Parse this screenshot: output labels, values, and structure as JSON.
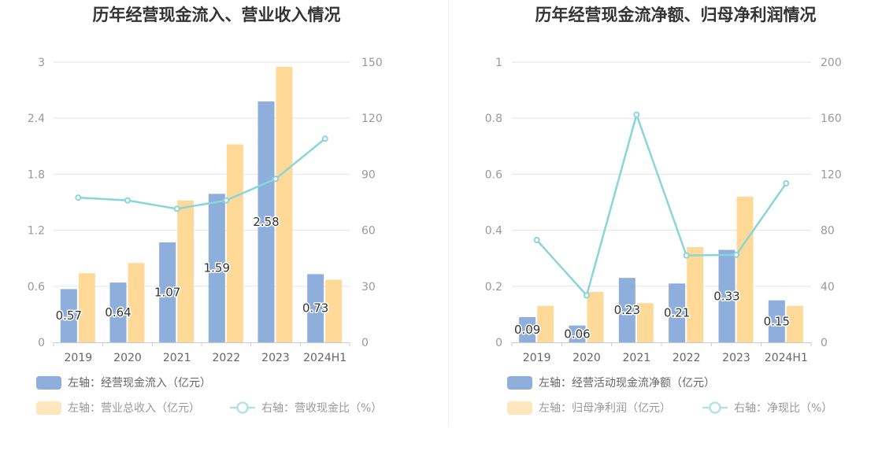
{
  "colors": {
    "left_bar": "#8eaedb",
    "right_bar": "#ffd997",
    "line": "#8ad5da",
    "grid": "#e2e5ee",
    "divider": "#eeeeee"
  },
  "chart_data": [
    {
      "type": "bar",
      "title": "历年经营现金流入、营业收入情况",
      "categories": [
        "2019",
        "2020",
        "2021",
        "2022",
        "2023",
        "2024H1"
      ],
      "left_axis": {
        "range": [
          0,
          3
        ],
        "ticks": [
          "0",
          "0.6",
          "1.2",
          "1.8",
          "2.4",
          "3"
        ]
      },
      "right_axis": {
        "range": [
          0,
          150
        ],
        "ticks": [
          "0",
          "30",
          "60",
          "90",
          "120",
          "150"
        ]
      },
      "series": [
        {
          "name": "左轴：经营现金流入（亿元）",
          "kind": "bar",
          "axis": "left",
          "values": [
            0.57,
            0.64,
            1.07,
            1.59,
            2.58,
            0.73
          ],
          "labels": [
            "0.57",
            "0.64",
            "1.07",
            "1.59",
            "2.58",
            "0.73"
          ]
        },
        {
          "name": "左轴：营业总收入（亿元）",
          "kind": "bar",
          "axis": "left",
          "values": [
            0.74,
            0.85,
            1.52,
            2.12,
            2.95,
            0.67
          ]
        },
        {
          "name": "右轴：营收现金比（%）",
          "kind": "line",
          "axis": "right",
          "values": [
            77.5,
            76,
            71.5,
            76,
            87.5,
            109
          ]
        }
      ]
    },
    {
      "type": "bar",
      "title": "历年经营现金流净额、归母净利润情况",
      "categories": [
        "2019",
        "2020",
        "2021",
        "2022",
        "2023",
        "2024H1"
      ],
      "left_axis": {
        "range": [
          0,
          1
        ],
        "ticks": [
          "0",
          "0.2",
          "0.4",
          "0.6",
          "0.8",
          "1"
        ]
      },
      "right_axis": {
        "range": [
          0,
          200
        ],
        "ticks": [
          "0",
          "40",
          "80",
          "120",
          "160",
          "200"
        ]
      },
      "series": [
        {
          "name": "左轴：经营活动现金流净额（亿元）",
          "kind": "bar",
          "axis": "left",
          "values": [
            0.09,
            0.06,
            0.23,
            0.21,
            0.33,
            0.15
          ],
          "labels": [
            "0.09",
            "0.06",
            "0.23",
            "0.21",
            "0.33",
            "0.15"
          ]
        },
        {
          "name": "左轴：归母净利润（亿元）",
          "kind": "bar",
          "axis": "left",
          "values": [
            0.13,
            0.18,
            0.14,
            0.34,
            0.52,
            0.13
          ]
        },
        {
          "name": "右轴：净现比（%）",
          "kind": "line",
          "axis": "right",
          "values": [
            73,
            33.5,
            162.5,
            62,
            62.5,
            113.5
          ]
        }
      ]
    }
  ]
}
